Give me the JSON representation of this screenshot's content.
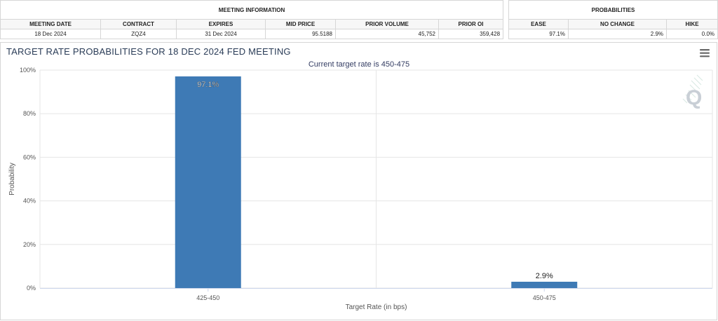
{
  "meeting_info": {
    "group_label": "MEETING INFORMATION",
    "headers": [
      "MEETING DATE",
      "CONTRACT",
      "EXPIRES",
      "MID PRICE",
      "PRIOR VOLUME",
      "PRIOR OI"
    ],
    "values": [
      "18 Dec 2024",
      "ZQZ4",
      "31 Dec 2024",
      "95.5188",
      "45,752",
      "359,428"
    ]
  },
  "probabilities": {
    "group_label": "PROBABILITIES",
    "headers": [
      "EASE",
      "NO CHANGE",
      "HIKE"
    ],
    "values": [
      "97.1%",
      "2.9%",
      "0.0%"
    ]
  },
  "chart": {
    "title": "TARGET RATE PROBABILITIES FOR 18 DEC 2024 FED MEETING",
    "subtitle": "Current target rate is 450-475",
    "menu_icon": "hamburger-menu-icon",
    "watermark_icon": "q-logo-icon"
  },
  "chart_data": {
    "type": "bar",
    "title": "TARGET RATE PROBABILITIES FOR 18 DEC 2024 FED MEETING",
    "subtitle": "Current target rate is 450-475",
    "categories": [
      "425-450",
      "450-475"
    ],
    "values": [
      97.1,
      2.9
    ],
    "data_labels": [
      "97.1%",
      "2.9%"
    ],
    "xlabel": "Target Rate (in bps)",
    "ylabel": "Probability",
    "ylim": [
      0,
      100
    ],
    "yticks": [
      "0%",
      "20%",
      "40%",
      "60%",
      "80%",
      "100%"
    ],
    "bar_color": "#3e7ab5",
    "grid": true,
    "legend": "none"
  }
}
